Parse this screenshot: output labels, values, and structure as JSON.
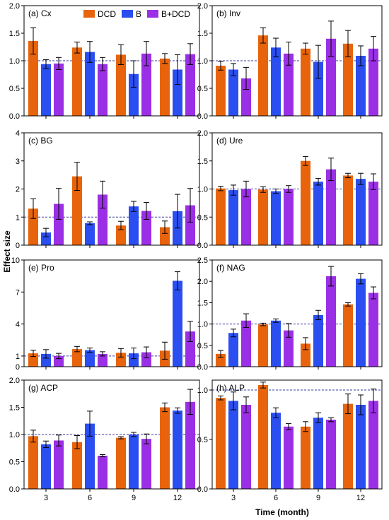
{
  "figure": {
    "ylabel": "Effect size",
    "xlabel": "Time (month)"
  },
  "legend": [
    {
      "name": "DCD",
      "color": "#e8640c",
      "icon": "legend-swatch-orange"
    },
    {
      "name": "B",
      "color": "#2b4ef0",
      "icon": "legend-swatch-blue"
    },
    {
      "name": "B+DCD",
      "color": "#9b2fe6",
      "icon": "legend-swatch-purple"
    }
  ],
  "colors": {
    "DCD": "#e8640c",
    "B": "#2b4ef0",
    "BDCD": "#9b2fe6",
    "reference_line": "#3a3aa0"
  },
  "chart_data": [
    {
      "type": "bar",
      "label": "(a) Cx",
      "categories": [
        "3",
        "6",
        "9",
        "12"
      ],
      "ylim": [
        0,
        2.0
      ],
      "yticks": [
        "0.0",
        "0.5",
        "1.0",
        "1.5",
        "2.0"
      ],
      "reference_line": 1.0,
      "series": [
        {
          "name": "DCD",
          "values": [
            1.36,
            1.24,
            1.11,
            1.04
          ],
          "errors": [
            0.24,
            0.1,
            0.18,
            0.09
          ]
        },
        {
          "name": "B",
          "values": [
            0.94,
            1.16,
            0.76,
            0.84
          ],
          "errors": [
            0.08,
            0.19,
            0.24,
            0.27
          ]
        },
        {
          "name": "B+DCD",
          "values": [
            0.95,
            0.94,
            1.13,
            1.12
          ],
          "errors": [
            0.11,
            0.12,
            0.22,
            0.19
          ]
        }
      ]
    },
    {
      "type": "bar",
      "label": "(b) Inv",
      "categories": [
        "3",
        "6",
        "9",
        "12"
      ],
      "ylim": [
        0,
        2.0
      ],
      "yticks": [
        "0.0",
        "0.5",
        "1.0",
        "1.5",
        "2.0"
      ],
      "reference_line": 1.0,
      "series": [
        {
          "name": "DCD",
          "values": [
            0.91,
            1.46,
            1.22,
            1.31
          ],
          "errors": [
            0.08,
            0.14,
            0.1,
            0.24
          ]
        },
        {
          "name": "B",
          "values": [
            0.84,
            1.24,
            0.98,
            1.09
          ],
          "errors": [
            0.11,
            0.17,
            0.3,
            0.18
          ]
        },
        {
          "name": "B+DCD",
          "values": [
            0.68,
            1.13,
            1.4,
            1.22
          ],
          "errors": [
            0.2,
            0.21,
            0.32,
            0.22
          ]
        }
      ]
    },
    {
      "type": "bar",
      "label": "(c) BG",
      "categories": [
        "3",
        "6",
        "9",
        "12"
      ],
      "ylim": [
        0,
        4
      ],
      "yticks": [
        "0",
        "1",
        "2",
        "3",
        "4"
      ],
      "reference_line": 1.0,
      "series": [
        {
          "name": "DCD",
          "values": [
            1.3,
            2.45,
            0.7,
            0.64
          ],
          "errors": [
            0.35,
            0.5,
            0.15,
            0.22
          ]
        },
        {
          "name": "B",
          "values": [
            0.45,
            0.78,
            1.38,
            1.21
          ],
          "errors": [
            0.15,
            0.05,
            0.18,
            0.6
          ]
        },
        {
          "name": "B+DCD",
          "values": [
            1.47,
            1.8,
            1.22,
            1.42
          ],
          "errors": [
            0.55,
            0.48,
            0.3,
            0.6
          ]
        }
      ]
    },
    {
      "type": "bar",
      "label": "(d) Ure",
      "categories": [
        "3",
        "6",
        "9",
        "12"
      ],
      "ylim": [
        0,
        2.0
      ],
      "yticks": [
        "0.0",
        "0.5",
        "1.0",
        "1.5",
        "2.0"
      ],
      "reference_line": 1.0,
      "series": [
        {
          "name": "DCD",
          "values": [
            1.01,
            0.99,
            1.5,
            1.24
          ],
          "errors": [
            0.04,
            0.05,
            0.08,
            0.04
          ]
        },
        {
          "name": "B",
          "values": [
            0.98,
            0.96,
            1.13,
            1.18
          ],
          "errors": [
            0.09,
            0.04,
            0.06,
            0.1
          ]
        },
        {
          "name": "B+DCD",
          "values": [
            1.0,
            1.0,
            1.35,
            1.13
          ],
          "errors": [
            0.14,
            0.06,
            0.2,
            0.14
          ]
        }
      ]
    },
    {
      "type": "bar",
      "label": "(e) Pro",
      "categories": [
        "3",
        "6",
        "9",
        "12"
      ],
      "ylim": [
        0,
        10
      ],
      "yticks": [
        "0",
        "1",
        "4",
        "7",
        "10"
      ],
      "reference_line": 1.0,
      "series": [
        {
          "name": "DCD",
          "values": [
            1.25,
            1.65,
            1.3,
            1.5
          ],
          "errors": [
            0.3,
            0.25,
            0.4,
            0.8
          ]
        },
        {
          "name": "B",
          "values": [
            1.2,
            1.55,
            1.25,
            8.05
          ],
          "errors": [
            0.4,
            0.2,
            0.5,
            0.85
          ]
        },
        {
          "name": "B+DCD",
          "values": [
            1.0,
            1.2,
            1.35,
            3.3
          ],
          "errors": [
            0.25,
            0.2,
            0.5,
            0.95
          ]
        }
      ]
    },
    {
      "type": "bar",
      "label": "(f) NAG",
      "categories": [
        "3",
        "6",
        "9",
        "12"
      ],
      "ylim": [
        0,
        2.5
      ],
      "yticks": [
        "0.0",
        "0.5",
        "1.0",
        "1.5",
        "2.0",
        "2.5"
      ],
      "reference_line": 1.0,
      "series": [
        {
          "name": "DCD",
          "values": [
            0.3,
            0.99,
            0.54,
            1.46
          ],
          "errors": [
            0.08,
            0.03,
            0.14,
            0.04
          ]
        },
        {
          "name": "B",
          "values": [
            0.79,
            1.08,
            1.21,
            2.06
          ],
          "errors": [
            0.09,
            0.04,
            0.11,
            0.12
          ]
        },
        {
          "name": "B+DCD",
          "values": [
            1.08,
            0.85,
            2.12,
            1.73
          ],
          "errors": [
            0.16,
            0.16,
            0.23,
            0.14
          ]
        }
      ]
    },
    {
      "type": "bar",
      "label": "(g) ACP",
      "categories": [
        "3",
        "6",
        "9",
        "12"
      ],
      "ylim": [
        0,
        2.0
      ],
      "yticks": [
        "0.0",
        "0.5",
        "1.0",
        "1.5",
        "2.0"
      ],
      "reference_line": 1.0,
      "series": [
        {
          "name": "DCD",
          "values": [
            0.97,
            0.86,
            0.94,
            1.5
          ],
          "errors": [
            0.11,
            0.12,
            0.02,
            0.08
          ]
        },
        {
          "name": "B",
          "values": [
            0.82,
            1.2,
            1.0,
            1.44
          ],
          "errors": [
            0.06,
            0.23,
            0.04,
            0.05
          ]
        },
        {
          "name": "B+DCD",
          "values": [
            0.89,
            0.61,
            0.92,
            1.6
          ],
          "errors": [
            0.1,
            0.02,
            0.09,
            0.23
          ]
        }
      ]
    },
    {
      "type": "bar",
      "label": "(h) ALP",
      "categories": [
        "3",
        "6",
        "9",
        "12"
      ],
      "ylim": [
        0,
        1.1
      ],
      "yticks": [
        "0.0",
        "0.5",
        "1.0"
      ],
      "reference_line": 1.0,
      "series": [
        {
          "name": "DCD",
          "values": [
            0.92,
            1.05,
            0.63,
            0.86
          ],
          "errors": [
            0.02,
            0.03,
            0.05,
            0.1
          ]
        },
        {
          "name": "B",
          "values": [
            0.89,
            0.77,
            0.72,
            0.85
          ],
          "errors": [
            0.09,
            0.05,
            0.05,
            0.1
          ]
        },
        {
          "name": "B+DCD",
          "values": [
            0.85,
            0.63,
            0.7,
            0.89
          ],
          "errors": [
            0.08,
            0.03,
            0.02,
            0.12
          ]
        }
      ]
    }
  ]
}
